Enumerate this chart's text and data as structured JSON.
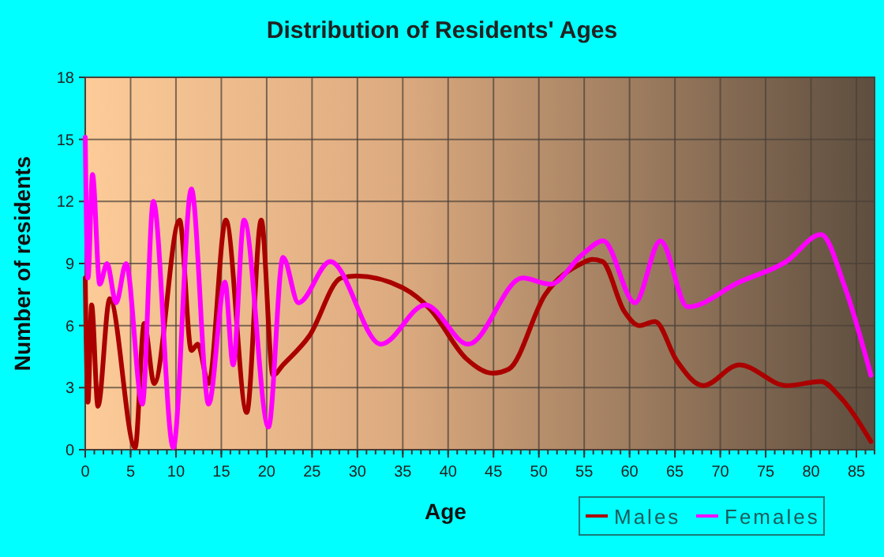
{
  "chart_data": {
    "type": "line",
    "title": "Distribution of Residents' Ages",
    "xlabel": "Age",
    "ylabel": "Number of residents",
    "xlim": [
      0,
      87
    ],
    "xticks": [
      0,
      5,
      10,
      15,
      20,
      25,
      30,
      35,
      40,
      45,
      50,
      55,
      60,
      65,
      70,
      75,
      80,
      85
    ],
    "ylim": [
      0,
      18
    ],
    "yticks": [
      0,
      3,
      6,
      9,
      12,
      15,
      18
    ],
    "grid": true,
    "legend": "bottom right",
    "marker": "none",
    "line_style": "solid",
    "series": [
      {
        "name": "Males",
        "color": "#aa0000",
        "x": [
          0,
          0.3,
          0.7,
          1.4,
          2.7,
          5.5,
          6.5,
          7.6,
          10.4,
          11.7,
          12.4,
          13.6,
          15.5,
          17.8,
          19.4,
          20.7,
          21.8,
          24.7,
          28.2,
          29.9,
          35.1,
          38,
          42,
          44.9,
          46.7,
          50.7,
          54.7,
          55.9,
          57,
          59.4,
          61.1,
          62.8,
          65.2,
          68.1,
          72.1,
          77.3,
          81.1,
          83.1,
          86.6
        ],
        "values": [
          8.3,
          2.3,
          7,
          2.1,
          7.3,
          0.1,
          6.1,
          3.2,
          11.1,
          4.8,
          5.1,
          3.2,
          11.1,
          1.8,
          11.1,
          3.6,
          4.1,
          5.5,
          8.3,
          8.4,
          7.8,
          6.8,
          4.4,
          3.7,
          3.9,
          7.5,
          9,
          9.2,
          9.1,
          6.7,
          6,
          6.2,
          4.3,
          3.1,
          4.1,
          3.1,
          3.3,
          2.6,
          0.4
        ]
      },
      {
        "name": "Females",
        "color": "#ff00ff",
        "x": [
          0,
          0.3,
          0.8,
          1.6,
          2.4,
          3.4,
          4.5,
          6.3,
          7.5,
          9.7,
          11.7,
          13.6,
          15.4,
          16.3,
          17.5,
          20.2,
          21.8,
          23.5,
          27,
          32.6,
          37.5,
          42.2,
          48.2,
          51.3,
          54.7,
          57.1,
          60.6,
          63.4,
          66.4,
          72.1,
          77.3,
          81.1,
          83.7,
          86.6
        ],
        "values": [
          15.1,
          8.3,
          13.3,
          8,
          9,
          7.1,
          9,
          2.2,
          12,
          0.1,
          12.6,
          2.2,
          8.1,
          4.1,
          11.1,
          1.1,
          9.3,
          7.1,
          9.1,
          5.1,
          7,
          5.1,
          8.3,
          8,
          9.4,
          10.1,
          7.1,
          10.1,
          6.9,
          8.1,
          9.1,
          10.4,
          7.9,
          3.6
        ]
      }
    ]
  }
}
